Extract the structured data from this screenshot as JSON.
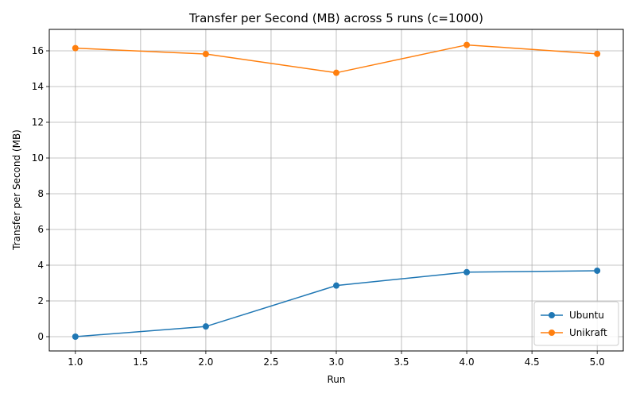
{
  "chart_data": {
    "type": "line",
    "title": "Transfer per Second (MB) across 5 runs (c=1000)",
    "xlabel": "Run",
    "ylabel": "Transfer per Second (MB)",
    "x": [
      1.0,
      2.0,
      3.0,
      4.0,
      5.0
    ],
    "xlim": [
      0.8,
      5.2
    ],
    "ylim": [
      -0.8,
      17.2
    ],
    "xticks": [
      1.0,
      1.5,
      2.0,
      2.5,
      3.0,
      3.5,
      4.0,
      4.5,
      5.0
    ],
    "xtick_labels": [
      "1.0",
      "1.5",
      "2.0",
      "2.5",
      "3.0",
      "3.5",
      "4.0",
      "4.5",
      "5.0"
    ],
    "yticks": [
      0,
      2,
      4,
      6,
      8,
      10,
      12,
      14,
      16
    ],
    "ytick_labels": [
      "0",
      "2",
      "4",
      "6",
      "8",
      "10",
      "12",
      "14",
      "16"
    ],
    "grid": true,
    "legend_position": "bottom-right",
    "series": [
      {
        "name": "Ubuntu",
        "color": "#1f77b4",
        "values": [
          0.0,
          0.57,
          2.86,
          3.61,
          3.69
        ]
      },
      {
        "name": "Unikraft",
        "color": "#ff7f0e",
        "values": [
          16.15,
          15.82,
          14.77,
          16.33,
          15.83
        ]
      }
    ]
  }
}
